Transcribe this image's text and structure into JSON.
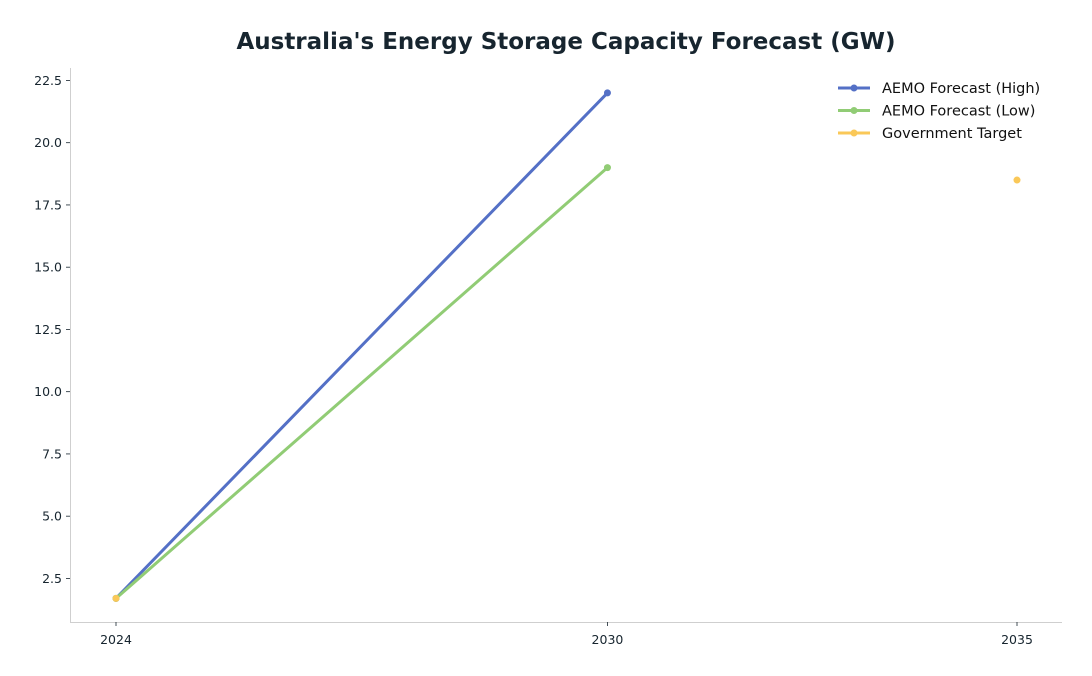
{
  "chart_data": {
    "type": "line",
    "title": "Australia's Energy Storage Capacity Forecast (GW)",
    "xlabel": "",
    "ylabel": "",
    "x": [
      2024,
      2030,
      2035
    ],
    "x_tick_labels": [
      "2024",
      "2030",
      "2035"
    ],
    "ylim": [
      0.75,
      23.0
    ],
    "y_ticks": [
      2.5,
      5.0,
      7.5,
      10.0,
      12.5,
      15.0,
      17.5,
      20.0,
      22.5
    ],
    "y_tick_labels": [
      "2.5",
      "5.0",
      "7.5",
      "10.0",
      "12.5",
      "15.0",
      "17.5",
      "20.0",
      "22.5"
    ],
    "grid": false,
    "legend_position": "top-right",
    "series": [
      {
        "name": "AEMO Forecast (High)",
        "color": "#5470c6",
        "values": [
          1.7,
          22.0,
          null
        ]
      },
      {
        "name": "AEMO Forecast (Low)",
        "color": "#91cc75",
        "values": [
          1.7,
          19.0,
          null
        ]
      },
      {
        "name": "Government Target",
        "color": "#fac858",
        "values": [
          1.7,
          null,
          18.5
        ]
      }
    ]
  }
}
